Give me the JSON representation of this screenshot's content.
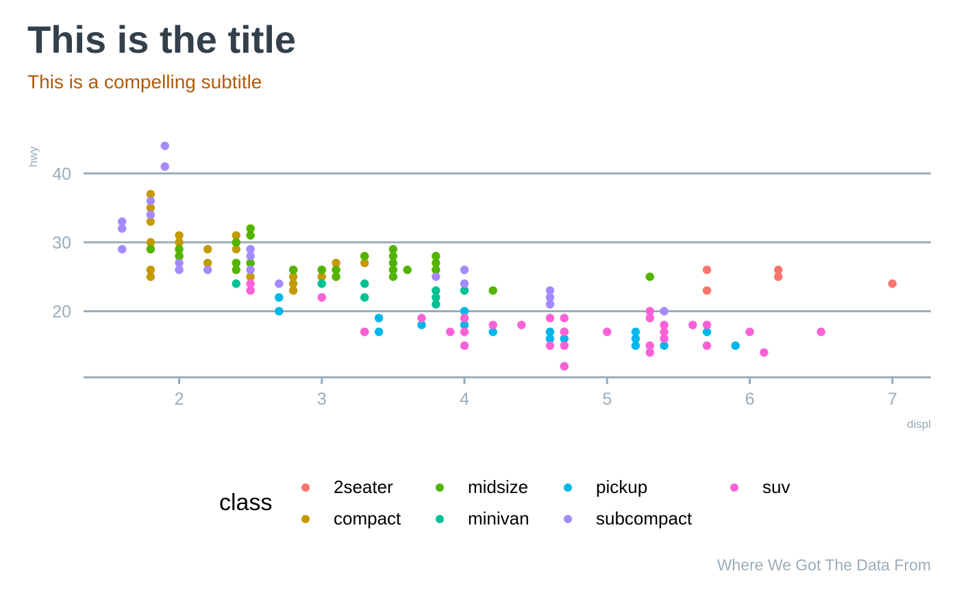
{
  "chart_data": {
    "type": "scatter",
    "title": "This is the title",
    "subtitle": "This is a compelling subtitle",
    "caption": "Where We Got The Data From",
    "xlabel": "displ",
    "ylabel": "hwy",
    "xlim": [
      1.33,
      7.27
    ],
    "ylim": [
      10.4,
      44.6
    ],
    "x_ticks": [
      2,
      3,
      4,
      5,
      6,
      7
    ],
    "y_ticks": [
      20,
      30,
      40
    ],
    "grid": "horizontal major",
    "legend": {
      "title": "class",
      "placement": "bottom"
    },
    "series": [
      {
        "name": "2seater",
        "color": "#f8766d",
        "points": [
          [
            5.7,
            26
          ],
          [
            5.7,
            23
          ],
          [
            6.2,
            26
          ],
          [
            6.2,
            25
          ],
          [
            7.0,
            24
          ]
        ]
      },
      {
        "name": "compact",
        "color": "#c49a00",
        "points": [
          [
            1.8,
            37
          ],
          [
            1.8,
            35
          ],
          [
            1.8,
            33
          ],
          [
            1.8,
            30
          ],
          [
            1.8,
            29
          ],
          [
            1.8,
            26
          ],
          [
            1.8,
            25
          ],
          [
            2.0,
            31
          ],
          [
            2.0,
            30
          ],
          [
            2.0,
            29
          ],
          [
            2.0,
            28
          ],
          [
            2.2,
            29
          ],
          [
            2.2,
            27
          ],
          [
            2.4,
            31
          ],
          [
            2.4,
            30
          ],
          [
            2.4,
            29
          ],
          [
            2.4,
            27
          ],
          [
            2.5,
            27
          ],
          [
            2.5,
            25
          ],
          [
            2.8,
            26
          ],
          [
            2.8,
            25
          ],
          [
            2.8,
            24
          ],
          [
            2.8,
            23
          ],
          [
            3.0,
            26
          ],
          [
            3.0,
            25
          ],
          [
            3.1,
            27
          ],
          [
            3.1,
            26
          ],
          [
            3.3,
            27
          ]
        ]
      },
      {
        "name": "midsize",
        "color": "#53b400",
        "points": [
          [
            1.8,
            29
          ],
          [
            2.0,
            29
          ],
          [
            2.0,
            28
          ],
          [
            2.4,
            30
          ],
          [
            2.4,
            27
          ],
          [
            2.4,
            26
          ],
          [
            2.5,
            32
          ],
          [
            2.5,
            31
          ],
          [
            2.5,
            27
          ],
          [
            2.8,
            26
          ],
          [
            3.0,
            26
          ],
          [
            3.1,
            26
          ],
          [
            3.1,
            25
          ],
          [
            3.3,
            28
          ],
          [
            3.5,
            29
          ],
          [
            3.5,
            28
          ],
          [
            3.5,
            27
          ],
          [
            3.5,
            26
          ],
          [
            3.5,
            25
          ],
          [
            3.6,
            26
          ],
          [
            3.8,
            28
          ],
          [
            3.8,
            27
          ],
          [
            3.8,
            26
          ],
          [
            4.2,
            23
          ],
          [
            5.3,
            25
          ]
        ]
      },
      {
        "name": "minivan",
        "color": "#00c094",
        "points": [
          [
            2.4,
            24
          ],
          [
            3.0,
            24
          ],
          [
            3.3,
            24
          ],
          [
            3.3,
            22
          ],
          [
            3.3,
            17
          ],
          [
            3.8,
            23
          ],
          [
            3.8,
            22
          ],
          [
            3.8,
            21
          ],
          [
            4.0,
            23
          ]
        ]
      },
      {
        "name": "pickup",
        "color": "#00b6eb",
        "points": [
          [
            2.7,
            22
          ],
          [
            2.7,
            20
          ],
          [
            3.4,
            19
          ],
          [
            3.4,
            17
          ],
          [
            3.7,
            18
          ],
          [
            4.0,
            20
          ],
          [
            4.0,
            18
          ],
          [
            4.2,
            17
          ],
          [
            4.6,
            17
          ],
          [
            4.6,
            16
          ],
          [
            4.7,
            17
          ],
          [
            4.7,
            16
          ],
          [
            4.7,
            12
          ],
          [
            5.2,
            17
          ],
          [
            5.2,
            16
          ],
          [
            5.2,
            15
          ],
          [
            5.4,
            15
          ],
          [
            5.7,
            17
          ],
          [
            5.9,
            15
          ]
        ]
      },
      {
        "name": "subcompact",
        "color": "#a58aff",
        "points": [
          [
            1.6,
            33
          ],
          [
            1.6,
            32
          ],
          [
            1.6,
            29
          ],
          [
            1.8,
            36
          ],
          [
            1.8,
            34
          ],
          [
            1.9,
            44
          ],
          [
            1.9,
            41
          ],
          [
            2.0,
            27
          ],
          [
            2.0,
            26
          ],
          [
            2.2,
            26
          ],
          [
            2.5,
            29
          ],
          [
            2.5,
            28
          ],
          [
            2.5,
            26
          ],
          [
            2.7,
            24
          ],
          [
            3.8,
            25
          ],
          [
            4.0,
            26
          ],
          [
            4.0,
            24
          ],
          [
            4.6,
            23
          ],
          [
            4.6,
            22
          ],
          [
            4.6,
            21
          ],
          [
            5.4,
            20
          ]
        ]
      },
      {
        "name": "suv",
        "color": "#fb61d7",
        "points": [
          [
            2.5,
            24
          ],
          [
            2.5,
            23
          ],
          [
            3.0,
            22
          ],
          [
            3.3,
            17
          ],
          [
            3.7,
            19
          ],
          [
            3.9,
            17
          ],
          [
            4.0,
            19
          ],
          [
            4.0,
            17
          ],
          [
            4.0,
            15
          ],
          [
            4.2,
            18
          ],
          [
            4.4,
            18
          ],
          [
            4.6,
            19
          ],
          [
            4.6,
            15
          ],
          [
            4.7,
            19
          ],
          [
            4.7,
            17
          ],
          [
            4.7,
            15
          ],
          [
            4.7,
            12
          ],
          [
            5.0,
            17
          ],
          [
            5.3,
            20
          ],
          [
            5.3,
            19
          ],
          [
            5.3,
            15
          ],
          [
            5.3,
            14
          ],
          [
            5.4,
            18
          ],
          [
            5.4,
            17
          ],
          [
            5.4,
            16
          ],
          [
            5.6,
            18
          ],
          [
            5.7,
            18
          ],
          [
            5.7,
            15
          ],
          [
            6.0,
            17
          ],
          [
            6.1,
            14
          ],
          [
            6.5,
            17
          ]
        ]
      }
    ]
  }
}
